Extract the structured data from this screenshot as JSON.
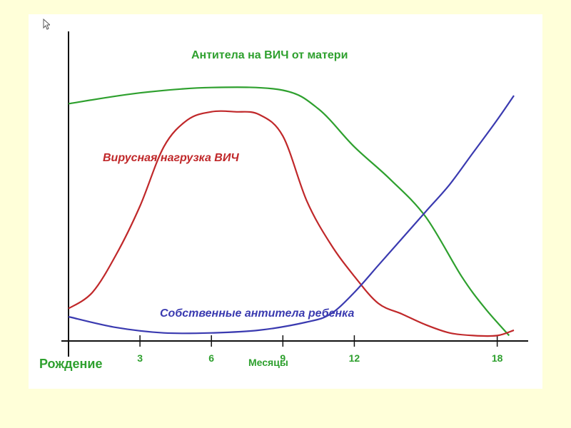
{
  "chart_data": {
    "type": "line",
    "xlabel": "Месяцы",
    "origin_label": "Рождение",
    "x_ticks": [
      3,
      6,
      9,
      12,
      18
    ],
    "x_tick_labels": [
      "3",
      "6",
      "9",
      "12",
      "18"
    ],
    "series": [
      {
        "name": "Антитела на ВИЧ от матери",
        "color": "#2ea02e",
        "x": [
          0,
          3,
          6,
          9,
          10.5,
          12,
          13.5,
          15,
          16.5,
          17.5,
          18.5
        ],
        "y": [
          0.88,
          0.92,
          0.94,
          0.93,
          0.86,
          0.72,
          0.6,
          0.46,
          0.24,
          0.12,
          0.02
        ]
      },
      {
        "name": "Вирусная нагрузка ВИЧ",
        "color": "#c0282a",
        "x": [
          0,
          1,
          2,
          3,
          4,
          5,
          6,
          7,
          8,
          9,
          10,
          11,
          12,
          13,
          14,
          15,
          16,
          17,
          18,
          18.7
        ],
        "y": [
          0.12,
          0.18,
          0.32,
          0.5,
          0.72,
          0.82,
          0.85,
          0.85,
          0.84,
          0.76,
          0.52,
          0.36,
          0.24,
          0.14,
          0.1,
          0.06,
          0.03,
          0.02,
          0.02,
          0.04
        ]
      },
      {
        "name": "Собственные антитела ребенка",
        "color": "#3a3ab0",
        "x": [
          0,
          2,
          4,
          6,
          8,
          10,
          11,
          12,
          13,
          14,
          15,
          16,
          17,
          18,
          18.7
        ],
        "y": [
          0.09,
          0.05,
          0.03,
          0.03,
          0.04,
          0.07,
          0.1,
          0.18,
          0.28,
          0.38,
          0.48,
          0.58,
          0.7,
          0.82,
          0.91
        ]
      }
    ],
    "xlim": [
      0,
      19
    ],
    "ylim": [
      0,
      1
    ]
  },
  "ui": {
    "cursor_icon": "cursor-arrow-icon"
  }
}
